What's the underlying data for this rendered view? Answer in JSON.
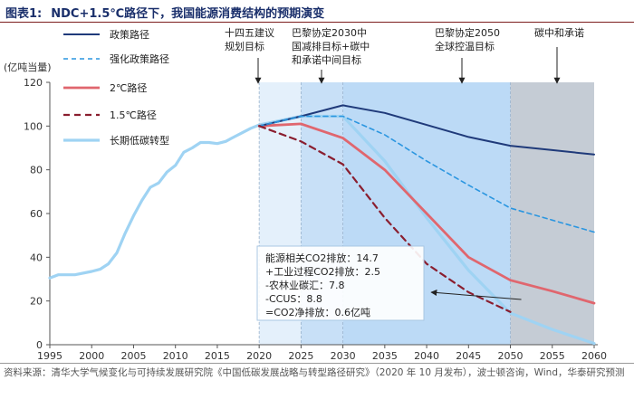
{
  "header": {
    "tag": "图表1:",
    "text": "NDC+1.5℃路径下，我国能源消费结构的预期演变"
  },
  "chart_data": {
    "type": "line",
    "title": "NDC+1.5℃路径下，我国能源消费结构的预期演变",
    "ylabel": "(亿吨当量)",
    "xlabel": "",
    "xlim": [
      1995,
      2060
    ],
    "ylim": [
      0,
      120
    ],
    "x_ticks": [
      "1995",
      "2000",
      "2005",
      "2010",
      "2015",
      "2020",
      "2025",
      "2030",
      "2035",
      "2040",
      "2045",
      "2050",
      "2055",
      "2060"
    ],
    "y_ticks": [
      "0",
      "20",
      "40",
      "60",
      "80",
      "100",
      "120"
    ],
    "periods": [
      {
        "name": "十四五",
        "label": "十四五建议\n规划目标",
        "range": [
          2020,
          2025
        ]
      },
      {
        "name": "巴黎2030",
        "label": "巴黎协定2030中\n国减排目标+碳中\n和承诺中间目标",
        "range": [
          2025,
          2030
        ]
      },
      {
        "name": "巴黎2050",
        "label": "巴黎协定2050\n全球控温目标",
        "range": [
          2030,
          2050
        ]
      },
      {
        "name": "碳中和",
        "label": "碳中和承诺",
        "range": [
          2050,
          2060
        ]
      }
    ],
    "series": [
      {
        "name": "政策路径",
        "color": "#1f3a7a",
        "style": "solid",
        "x": [
          2020,
          2025,
          2030,
          2035,
          2040,
          2045,
          2050,
          2055,
          2060
        ],
        "values": [
          100,
          104.5,
          109.5,
          106,
          100.5,
          95,
          91,
          89,
          87
        ]
      },
      {
        "name": "强化政策路径",
        "color": "#2b96e0",
        "style": "dashed",
        "x": [
          2020,
          2025,
          2030,
          2035,
          2040,
          2045,
          2050,
          2055,
          2060
        ],
        "values": [
          100,
          104.5,
          104.5,
          96,
          84,
          73,
          62.5,
          57,
          51.5
        ]
      },
      {
        "name": "2℃路径",
        "color": "#e0666e",
        "style": "solid",
        "x": [
          2020,
          2025,
          2030,
          2035,
          2040,
          2045,
          2050,
          2055,
          2060
        ],
        "values": [
          100,
          101,
          94.5,
          80,
          60,
          40,
          29.5,
          24.5,
          19
        ]
      },
      {
        "name": "1.5℃路径",
        "color": "#8a1e2f",
        "style": "dashed",
        "x": [
          2020,
          2025,
          2030,
          2035,
          2040,
          2045,
          2050
        ],
        "values": [
          100,
          93,
          82.5,
          58,
          37,
          24,
          15
        ]
      },
      {
        "name": "长期低碳转型",
        "color": "#9fd3f3",
        "style": "solid",
        "x": [
          1995,
          1996,
          1998,
          2000,
          2001,
          2002,
          2003,
          2004,
          2005,
          2006,
          2007,
          2008,
          2009,
          2010,
          2011,
          2012,
          2013,
          2014,
          2015,
          2016,
          2017,
          2018,
          2019,
          2020,
          2025,
          2030,
          2035,
          2040,
          2045,
          2050,
          2055,
          2060
        ],
        "values": [
          30.5,
          32,
          32,
          33.5,
          34.5,
          37,
          42,
          51,
          59,
          66,
          72,
          74,
          79,
          82,
          88,
          90,
          92.5,
          92.5,
          92,
          93,
          95,
          97,
          99,
          100.5,
          104.5,
          104.5,
          84,
          58,
          34,
          14.5,
          7,
          0.6
        ]
      }
    ],
    "annotation": {
      "lines": [
        "能源相关CO2排放：14.7",
        "+工业过程CO2排放：2.5",
        "-农林业碳汇：7.8",
        "-CCUS：8.8",
        "=CO2净排放：0.6亿吨"
      ],
      "arrow_to": [
        2050,
        15
      ]
    }
  },
  "footer": "资料来源：清华大学气候变化与可持续发展研究院《中国低碳发展战略与转型路径研究》（2020 年 10 月发布），波士顿咨询，Wind，华泰研究预测"
}
